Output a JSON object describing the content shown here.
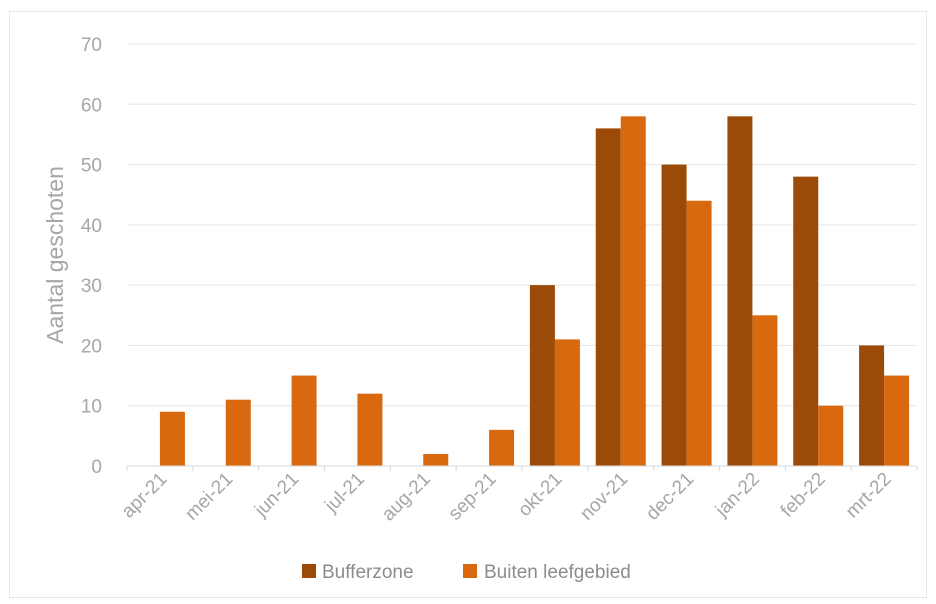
{
  "chart_data": {
    "type": "bar",
    "ylabel": "Aantal geschoten",
    "xlabel": "",
    "ylim": [
      0,
      70
    ],
    "yticks": [
      0,
      10,
      20,
      30,
      40,
      50,
      60,
      70
    ],
    "categories": [
      "apr-21",
      "mei-21",
      "jun-21",
      "jul-21",
      "aug-21",
      "sep-21",
      "okt-21",
      "nov-21",
      "dec-21",
      "jan-22",
      "feb-22",
      "mrt-22"
    ],
    "series": [
      {
        "name": "Bufferzone",
        "color": "#9c4a07",
        "values": [
          0,
          0,
          0,
          0,
          0,
          0,
          30,
          56,
          50,
          58,
          48,
          20
        ]
      },
      {
        "name": "Buiten leefgebied",
        "color": "#d8690f",
        "values": [
          9,
          11,
          15,
          12,
          2,
          6,
          21,
          58,
          44,
          25,
          10,
          15
        ]
      }
    ],
    "grid": true,
    "legend": "bottom"
  }
}
